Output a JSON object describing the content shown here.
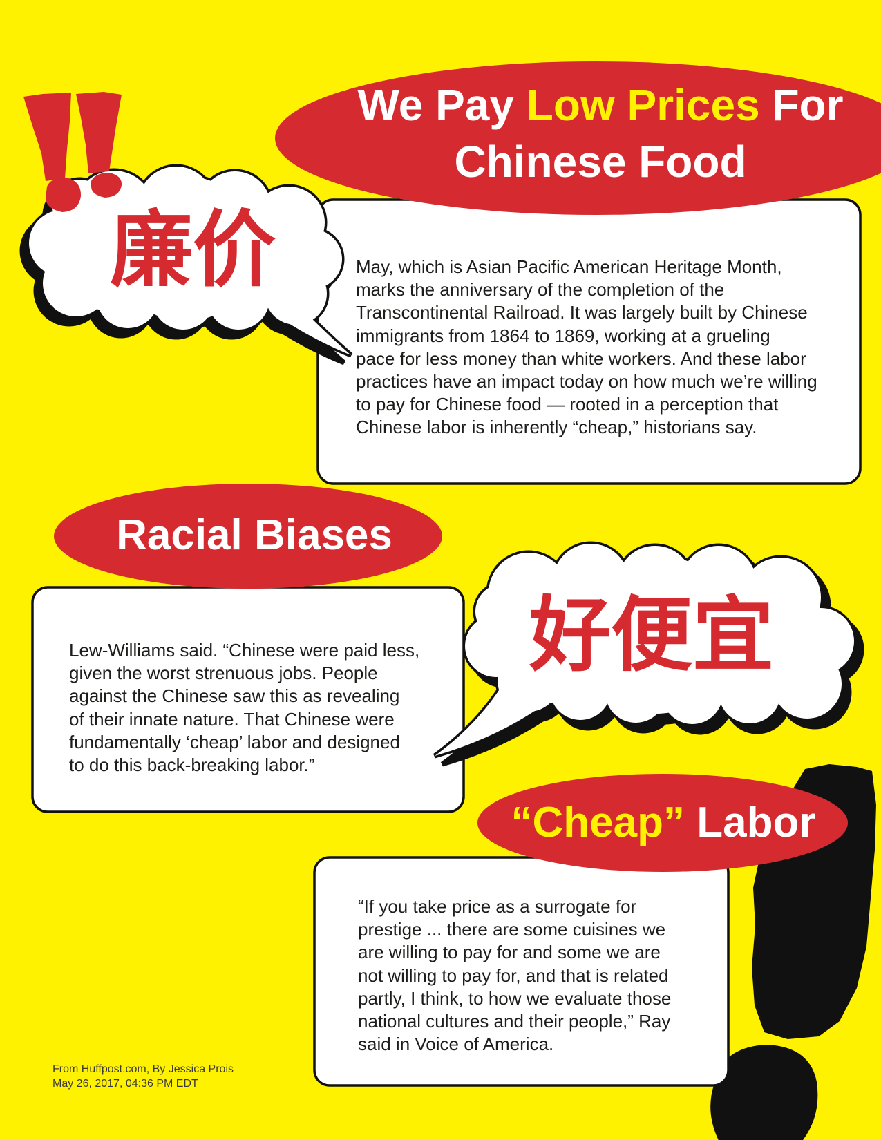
{
  "colors": {
    "background": "#FFF200",
    "red": "#D52B30",
    "highlight": "#FFF200",
    "text": "#1D1D1B",
    "outline": "#111111"
  },
  "icons": {
    "top_left": "double-exclamation-icon",
    "bottom_right": "exclamation-icon"
  },
  "header": {
    "line1_start": "We Pay",
    "line1_highlight": "Low Prices",
    "line1_end": "For",
    "line2": "Chinese Food"
  },
  "bubble_left": {
    "text": "廉价"
  },
  "section1": {
    "lines": [
      "May, which is Asian Pacific American Heritage Month,",
      "marks the anniversary of the completion of the",
      "Transcontinental Railroad. It was largely built by Chinese",
      "immigrants from 1864 to 1869, working at a grueling",
      "pace for less money than white workers. And these labor",
      "practices have an impact today on how much we’re willing",
      "to pay for Chinese food — rooted in a perception that",
      "Chinese labor is inherently “cheap,” historians say."
    ]
  },
  "section2": {
    "title": "Racial Biases",
    "lines": [
      "Lew-Williams said. “Chinese were paid less,",
      "given the worst strenuous jobs. People",
      "against the Chinese saw this as revealing",
      "of their innate nature. That Chinese were",
      "fundamentally ‘cheap’ labor and designed",
      "to do this back-breaking labor.”"
    ]
  },
  "bubble_right": {
    "text": "好便宜"
  },
  "section3": {
    "title_highlight": "“Cheap”",
    "title_rest": "Labor",
    "lines": [
      "“If you take price as a surrogate for",
      "prestige ... there are some cuisines we",
      "are willing to pay for and some we are",
      "not willing to pay for, and that is related",
      "partly, I think, to how we evaluate those",
      "national cultures and their people,” Ray",
      "said in Voice of America."
    ]
  },
  "footer": {
    "source": "From Huffpost.com, By Jessica Prois",
    "date": "May 26, 2017, 04:36 PM EDT"
  }
}
